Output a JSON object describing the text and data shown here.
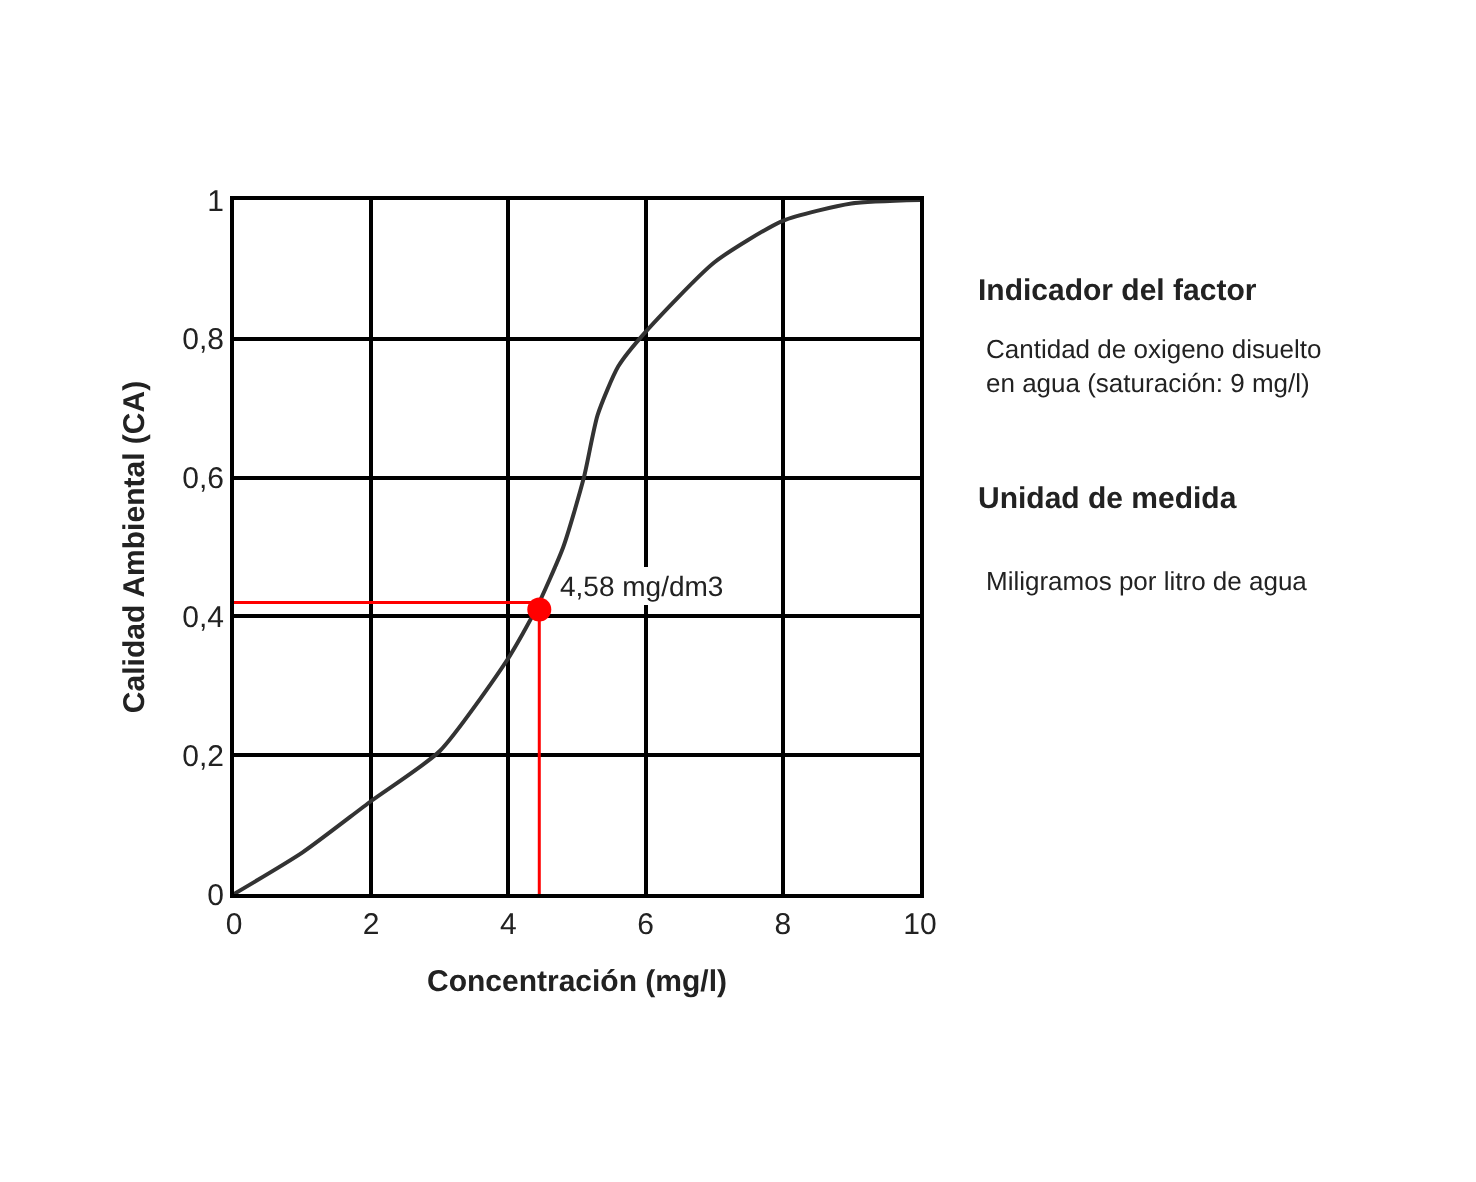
{
  "chart_data": {
    "type": "line",
    "xlabel": "Concentración (mg/l)",
    "ylabel": "Calidad Ambiental (CA)",
    "xlim": [
      0,
      10
    ],
    "xticks": [
      0,
      2,
      4,
      6,
      8,
      10
    ],
    "ylim": [
      0,
      1
    ],
    "yticks": [
      0,
      {
        "value": 0.2,
        "label": "0,2"
      },
      {
        "value": 0.4,
        "label": "0,4"
      },
      {
        "value": 0.6,
        "label": "0,6"
      },
      {
        "value": 0.8,
        "label": "0,8"
      },
      1
    ],
    "grid": true,
    "marker": "none",
    "line_style": "solid",
    "series": [
      {
        "color": "#333333",
        "x": [
          0,
          1,
          2,
          3,
          4,
          4.4,
          4.8,
          5.1,
          5.3,
          5.6,
          6,
          7,
          8,
          9,
          10
        ],
        "values": [
          0,
          0.06,
          0.134,
          0.206,
          0.34,
          0.41,
          0.5,
          0.6,
          0.69,
          0.76,
          0.81,
          0.91,
          0.97,
          0.995,
          1.0
        ]
      },
      {
        "color": "#ff0000",
        "x": [
          0,
          4.45,
          4.45
        ],
        "values": [
          0.42,
          0.42,
          0
        ]
      },
      {
        "type": "scatter",
        "color": "#ff0000",
        "marker": "circle",
        "x": [
          4.45
        ],
        "values": [
          0.41
        ]
      }
    ],
    "annotations": [
      "Indicador del factor",
      "Cantidad de oxigeno disuelto\nen agua (saturación: 9 mg/l)",
      "Unidad de medida",
      "Miligramos por litro de agua",
      {
        "text": "4,58 mg/dm3",
        "x": 4.45,
        "y": 0.41
      }
    ]
  }
}
